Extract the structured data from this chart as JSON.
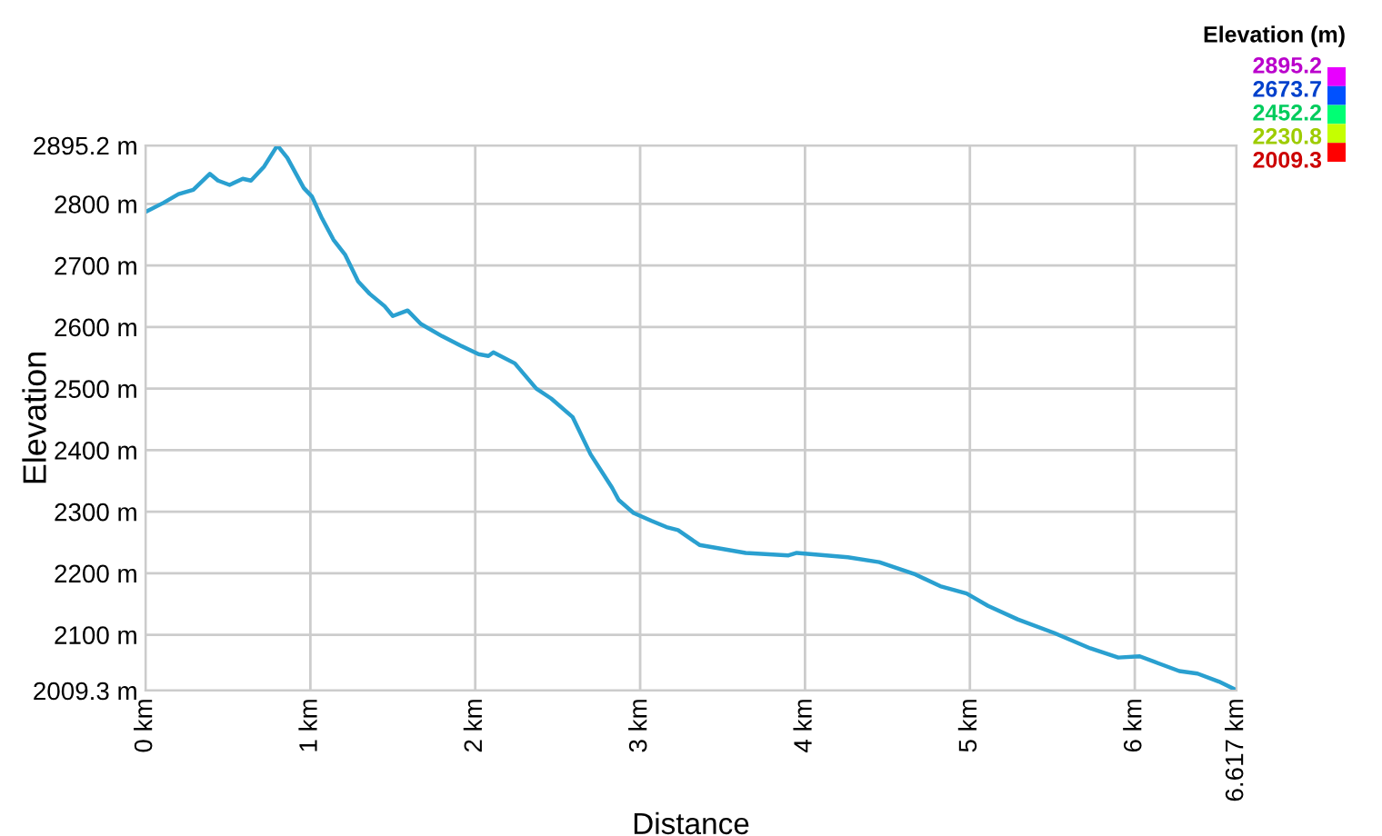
{
  "chart_data": {
    "type": "line",
    "xlabel": "Distance",
    "ylabel": "Elevation",
    "clabel": "Elevation (m)",
    "xlim": [
      0,
      6.617
    ],
    "ylim": [
      2009.3,
      2895.2
    ],
    "xticks": [
      {
        "value": 0,
        "label": "0 km"
      },
      {
        "value": 1,
        "label": "1 km"
      },
      {
        "value": 2,
        "label": "2 km"
      },
      {
        "value": 3,
        "label": "3 km"
      },
      {
        "value": 4,
        "label": "4 km"
      },
      {
        "value": 5,
        "label": "5 km"
      },
      {
        "value": 6,
        "label": "6 km"
      },
      {
        "value": 6.617,
        "label": "6.617 km"
      }
    ],
    "yticks": [
      {
        "value": 2009.3,
        "label": "2009.3 m"
      },
      {
        "value": 2100,
        "label": "2100 m"
      },
      {
        "value": 2200,
        "label": "2200 m"
      },
      {
        "value": 2300,
        "label": "2300 m"
      },
      {
        "value": 2400,
        "label": "2400 m"
      },
      {
        "value": 2500,
        "label": "2500 m"
      },
      {
        "value": 2600,
        "label": "2600 m"
      },
      {
        "value": 2700,
        "label": "2700 m"
      },
      {
        "value": 2800,
        "label": "2800 m"
      },
      {
        "value": 2895.2,
        "label": "2895.2 m"
      }
    ],
    "clim": [
      2009.3,
      2895.2
    ],
    "cticks": [
      {
        "value": 2895.2,
        "label": "2895.2"
      },
      {
        "value": 2673.7,
        "label": "2673.7"
      },
      {
        "value": 2452.2,
        "label": "2452.2"
      },
      {
        "value": 2230.8,
        "label": "2230.8"
      },
      {
        "value": 2009.3,
        "label": "2009.3"
      }
    ],
    "grid": true,
    "series": [
      {
        "x": [
          0,
          0.11,
          0.2,
          0.29,
          0.39,
          0.44,
          0.51,
          0.59,
          0.64,
          0.72,
          0.8,
          0.86,
          0.96,
          1.01,
          1.07,
          1.14,
          1.21,
          1.29,
          1.36,
          1.45,
          1.5,
          1.59,
          1.67,
          1.8,
          1.91,
          2.02,
          2.08,
          2.11,
          2.24,
          2.37,
          2.46,
          2.59,
          2.7,
          2.83,
          2.87,
          2.96,
          3.07,
          3.16,
          3.23,
          3.36,
          3.64,
          3.9,
          3.95,
          4.26,
          4.45,
          4.67,
          4.82,
          4.98,
          5.11,
          5.29,
          5.51,
          5.73,
          5.9,
          6.03,
          6.14,
          6.27,
          6.38,
          6.51,
          6.617
        ],
        "color": "#2aa0d0",
        "values": [
          2787,
          2802,
          2816,
          2823,
          2849,
          2838,
          2831,
          2841,
          2838,
          2861,
          2895,
          2875,
          2826,
          2812,
          2777,
          2742,
          2718,
          2674,
          2654,
          2634,
          2618,
          2627,
          2605,
          2585,
          2570,
          2556,
          2553,
          2559,
          2541,
          2500,
          2484,
          2454,
          2393,
          2339,
          2319,
          2298,
          2285,
          2275,
          2270,
          2246,
          2233,
          2229,
          2233,
          2226,
          2218,
          2198,
          2179,
          2167,
          2147,
          2125,
          2103,
          2078,
          2063,
          2065,
          2054,
          2041,
          2037,
          2024,
          2010
        ]
      }
    ]
  }
}
